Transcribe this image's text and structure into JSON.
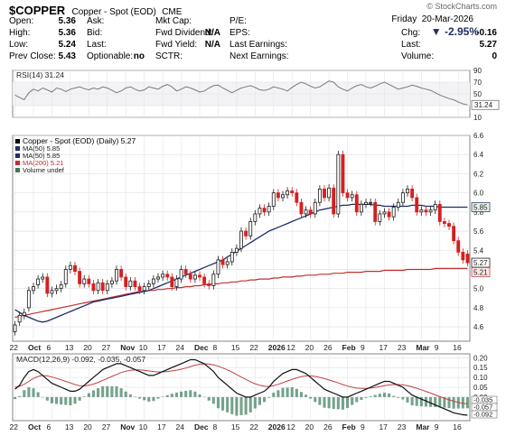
{
  "header": {
    "symbol": "$COPPER",
    "name": "Copper - Spot (EOD)",
    "exchange": "CME",
    "watermark": "© StockCharts.com",
    "date": "Friday  20-Mar-2026",
    "change_pct": "▼ -2.95%",
    "rows": [
      [
        {
          "label": "Open:",
          "value": "5.36"
        },
        {
          "label": "Ask:",
          "value": ""
        },
        {
          "label": "Mkt Cap:",
          "value": ""
        },
        {
          "label": "P/E:",
          "value": ""
        },
        {
          "label": "",
          "value": ""
        }
      ],
      [
        {
          "label": "High:",
          "value": "5.36"
        },
        {
          "label": "Bid:",
          "value": ""
        },
        {
          "label": "Fwd Dividend:",
          "value": "N/A"
        },
        {
          "label": "EPS:",
          "value": ""
        },
        {
          "label": "Chg:",
          "value": "-0.16"
        }
      ],
      [
        {
          "label": "Low:",
          "value": "5.24"
        },
        {
          "label": "Last:",
          "value": ""
        },
        {
          "label": "Fwd Yield:",
          "value": "N/A"
        },
        {
          "label": "Last Earnings:",
          "value": ""
        },
        {
          "label": "Last:",
          "value": "5.27"
        }
      ],
      [
        {
          "label": "Prev Close:",
          "value": "5.43"
        },
        {
          "label": "Optionable:",
          "value": "no"
        },
        {
          "label": "SCTR:",
          "value": ""
        },
        {
          "label": "Next Earnings:",
          "value": ""
        },
        {
          "label": "Volume:",
          "value": "0"
        }
      ]
    ]
  },
  "colors": {
    "price_up": "#1a1a1a",
    "price_down": "#d42020",
    "ma50": "#1f2f66",
    "ma200": "#c03030",
    "rsi": "#7a7a7a",
    "macd": "#111111",
    "signal": "#c04040",
    "hist": "#3b7a5a",
    "band": "#f3f3f6"
  },
  "chart_data": [
    {
      "type": "line",
      "title": "RSI(14) 31.24",
      "ylim": [
        10,
        90
      ],
      "yticks": [
        10,
        30,
        50,
        70,
        90
      ],
      "last_label": "31.24",
      "series": [
        {
          "name": "RSI(14)",
          "values": [
            48,
            44,
            40,
            52,
            58,
            55,
            60,
            57,
            53,
            60,
            58,
            54,
            58,
            60,
            62,
            59,
            57,
            60,
            58,
            62,
            60,
            56,
            52,
            55,
            60,
            62,
            58,
            55,
            57,
            62,
            60,
            58,
            63,
            66,
            62,
            55,
            58,
            62,
            60,
            57,
            53,
            55,
            60,
            64,
            65,
            60,
            56,
            52,
            56,
            60,
            62,
            64,
            61,
            57,
            56,
            58,
            62,
            60,
            58,
            55,
            61,
            66,
            70,
            67,
            63,
            60,
            62,
            67,
            72,
            70,
            62,
            58,
            55,
            60,
            64,
            66,
            62,
            60,
            63,
            67,
            70,
            66,
            62,
            58,
            60,
            62,
            65,
            63,
            60,
            58,
            56,
            52,
            48,
            45,
            42,
            40,
            36,
            33,
            31.24
          ]
        }
      ]
    },
    {
      "type": "candlestick",
      "title": "Copper - Spot (EOD) (Daily) 5.27",
      "ylim": [
        4.45,
        6.6
      ],
      "yticks": [
        4.6,
        4.8,
        5.0,
        5.2,
        5.4,
        5.6,
        5.8,
        6.0,
        6.2,
        6.4,
        6.6
      ],
      "x_labels": [
        "22",
        "Oct",
        "6",
        "13",
        "20",
        "27",
        "Nov",
        "10",
        "17",
        "24",
        "Dec",
        "8",
        "15",
        "22",
        "2026",
        "12",
        "20",
        "26",
        "Feb",
        "9",
        "17",
        "23",
        "Mar",
        "9",
        "16"
      ],
      "legend": [
        "Copper - Spot (EOD) (Daily) 5.27",
        "MA(50) 5.85",
        "MA(50) 5.85",
        "MA(200) 5.21",
        "Volume undef"
      ],
      "price_tags": {
        "ma50": "5.85",
        "last": "5.27",
        "ma200": "5.21"
      },
      "close": [
        4.62,
        4.72,
        4.75,
        4.98,
        5.02,
        5.1,
        5.12,
        4.95,
        4.98,
        5.0,
        5.04,
        5.2,
        5.24,
        5.18,
        5.05,
        5.1,
        5.05,
        4.98,
        5.06,
        4.98,
        5.05,
        5.08,
        5.2,
        5.12,
        5.02,
        5.08,
        5.02,
        4.98,
        5.02,
        5.05,
        5.1,
        5.12,
        5.15,
        5.12,
        5.02,
        5.1,
        5.2,
        5.15,
        5.1,
        5.14,
        5.12,
        5.05,
        5.03,
        5.15,
        5.3,
        5.25,
        5.28,
        5.38,
        5.42,
        5.6,
        5.55,
        5.7,
        5.78,
        5.84,
        5.8,
        5.86,
        6.0,
        5.95,
        5.98,
        6.02,
        6.0,
        5.9,
        5.78,
        5.82,
        5.78,
        5.9,
        6.04,
        5.95,
        6.05,
        5.78,
        6.4,
        6.0,
        5.95,
        5.98,
        5.8,
        5.88,
        5.9,
        5.9,
        5.7,
        5.78,
        5.8,
        5.75,
        5.85,
        5.9,
        6.0,
        6.04,
        5.95,
        5.8,
        5.82,
        5.8,
        5.82,
        5.88,
        5.7,
        5.68,
        5.65,
        5.5,
        5.38,
        5.3,
        5.27
      ],
      "open": [
        4.55,
        4.65,
        4.72,
        4.8,
        4.98,
        5.04,
        5.1,
        5.12,
        4.95,
        4.98,
        5.0,
        5.05,
        5.2,
        5.24,
        5.18,
        5.05,
        5.1,
        5.05,
        4.98,
        5.06,
        4.98,
        5.05,
        5.08,
        5.2,
        5.12,
        5.02,
        5.08,
        5.02,
        4.98,
        5.02,
        5.05,
        5.1,
        5.12,
        5.15,
        5.12,
        5.02,
        5.1,
        5.2,
        5.15,
        5.1,
        5.14,
        5.12,
        5.05,
        5.03,
        5.15,
        5.3,
        5.25,
        5.28,
        5.38,
        5.42,
        5.6,
        5.55,
        5.7,
        5.78,
        5.84,
        5.8,
        5.86,
        6.0,
        5.95,
        5.98,
        6.02,
        6.0,
        5.9,
        5.78,
        5.82,
        5.78,
        5.9,
        6.04,
        5.95,
        6.05,
        5.78,
        6.4,
        6.0,
        5.95,
        5.98,
        5.8,
        5.88,
        5.9,
        5.9,
        5.7,
        5.78,
        5.8,
        5.75,
        5.85,
        5.9,
        6.0,
        6.04,
        5.95,
        5.8,
        5.82,
        5.8,
        5.82,
        5.88,
        5.7,
        5.68,
        5.65,
        5.5,
        5.38,
        5.36
      ],
      "ma50": [
        4.78,
        4.75,
        4.72,
        4.7,
        4.68,
        4.66,
        4.65,
        4.66,
        4.68,
        4.7,
        4.72,
        4.74,
        4.76,
        4.78,
        4.8,
        4.82,
        4.84,
        4.86,
        4.87,
        4.88,
        4.89,
        4.9,
        4.91,
        4.92,
        4.93,
        4.94,
        4.95,
        4.96,
        4.97,
        4.98,
        5.0,
        5.02,
        5.04,
        5.06,
        5.08,
        5.1,
        5.12,
        5.14,
        5.16,
        5.18,
        5.2,
        5.22,
        5.24,
        5.26,
        5.28,
        5.3,
        5.33,
        5.36,
        5.39,
        5.42,
        5.45,
        5.48,
        5.51,
        5.54,
        5.57,
        5.6,
        5.62,
        5.64,
        5.66,
        5.68,
        5.7,
        5.72,
        5.74,
        5.76,
        5.78,
        5.8,
        5.82,
        5.83,
        5.84,
        5.85,
        5.86,
        5.87,
        5.87,
        5.88,
        5.88,
        5.88,
        5.88,
        5.88,
        5.87,
        5.87,
        5.86,
        5.86,
        5.86,
        5.86,
        5.86,
        5.86,
        5.87,
        5.87,
        5.87,
        5.86,
        5.86,
        5.86,
        5.85,
        5.85,
        5.85,
        5.85,
        5.85,
        5.85,
        5.85
      ],
      "ma200": [
        4.7,
        4.71,
        4.72,
        4.73,
        4.74,
        4.75,
        4.76,
        4.77,
        4.78,
        4.79,
        4.8,
        4.81,
        4.82,
        4.83,
        4.84,
        4.85,
        4.86,
        4.87,
        4.88,
        4.89,
        4.9,
        4.91,
        4.92,
        4.93,
        4.94,
        4.95,
        4.96,
        4.97,
        4.97,
        4.98,
        4.98,
        4.99,
        4.99,
        5.0,
        5.0,
        5.01,
        5.01,
        5.02,
        5.02,
        5.03,
        5.03,
        5.04,
        5.04,
        5.05,
        5.05,
        5.06,
        5.06,
        5.07,
        5.07,
        5.08,
        5.08,
        5.09,
        5.09,
        5.1,
        5.1,
        5.1,
        5.11,
        5.11,
        5.12,
        5.12,
        5.12,
        5.13,
        5.13,
        5.14,
        5.14,
        5.14,
        5.15,
        5.15,
        5.15,
        5.16,
        5.16,
        5.16,
        5.17,
        5.17,
        5.17,
        5.17,
        5.18,
        5.18,
        5.18,
        5.18,
        5.19,
        5.19,
        5.19,
        5.19,
        5.19,
        5.2,
        5.2,
        5.2,
        5.2,
        5.2,
        5.2,
        5.21,
        5.21,
        5.21,
        5.21,
        5.21,
        5.21,
        5.21,
        5.21
      ]
    },
    {
      "type": "line",
      "title": "MACD(12,26,9) -0.092, -0.035, -0.057",
      "ylim": [
        -0.12,
        0.22
      ],
      "yticks": [
        0.2,
        0.15,
        0.1,
        0.05,
        0.0
      ],
      "x_labels": [
        "22",
        "Oct",
        "6",
        "13",
        "20",
        "27",
        "Nov",
        "10",
        "17",
        "24",
        "Dec",
        "8",
        "15",
        "22",
        "2026",
        "12",
        "20",
        "26",
        "Feb",
        "9",
        "17",
        "23",
        "Mar",
        "9",
        "16"
      ],
      "price_tags": [
        "-0.035",
        "-0.057",
        "-0.092"
      ],
      "series": [
        {
          "name": "MACD(12,26,9)",
          "values": [
            0.04,
            0.06,
            0.1,
            0.13,
            0.14,
            0.13,
            0.11,
            0.09,
            0.07,
            0.06,
            0.05,
            0.04,
            0.03,
            0.03,
            0.04,
            0.06,
            0.08,
            0.1,
            0.12,
            0.14,
            0.15,
            0.16,
            0.17,
            0.17,
            0.16,
            0.15,
            0.14,
            0.13,
            0.12,
            0.11,
            0.11,
            0.12,
            0.13,
            0.14,
            0.15,
            0.16,
            0.17,
            0.18,
            0.19,
            0.19,
            0.18,
            0.17,
            0.15,
            0.13,
            0.1,
            0.08,
            0.06,
            0.04,
            0.02,
            0.01,
            0.0,
            0.0,
            0.01,
            0.02,
            0.03,
            0.05,
            0.08,
            0.1,
            0.12,
            0.13,
            0.14,
            0.14,
            0.13,
            0.12,
            0.1,
            0.08,
            0.06,
            0.04,
            0.03,
            0.02,
            0.01,
            0.0,
            0.0,
            0.01,
            0.02,
            0.03,
            0.04,
            0.05,
            0.06,
            0.07,
            0.08,
            0.08,
            0.07,
            0.06,
            0.05,
            0.03,
            0.01,
            0.0,
            -0.01,
            -0.02,
            -0.03,
            -0.04,
            -0.05,
            -0.06,
            -0.07,
            -0.08,
            -0.085,
            -0.09,
            -0.092
          ]
        },
        {
          "name": "Signal",
          "values": [
            0.05,
            0.055,
            0.065,
            0.08,
            0.095,
            0.105,
            0.11,
            0.108,
            0.102,
            0.095,
            0.088,
            0.08,
            0.072,
            0.064,
            0.058,
            0.057,
            0.06,
            0.066,
            0.075,
            0.085,
            0.095,
            0.105,
            0.115,
            0.125,
            0.132,
            0.136,
            0.138,
            0.138,
            0.136,
            0.133,
            0.13,
            0.128,
            0.128,
            0.13,
            0.133,
            0.137,
            0.142,
            0.148,
            0.155,
            0.162,
            0.167,
            0.169,
            0.168,
            0.164,
            0.157,
            0.148,
            0.138,
            0.127,
            0.115,
            0.102,
            0.09,
            0.078,
            0.068,
            0.06,
            0.055,
            0.054,
            0.058,
            0.065,
            0.073,
            0.082,
            0.09,
            0.098,
            0.104,
            0.108,
            0.108,
            0.105,
            0.1,
            0.094,
            0.087,
            0.08,
            0.072,
            0.064,
            0.056,
            0.05,
            0.046,
            0.044,
            0.044,
            0.046,
            0.049,
            0.053,
            0.058,
            0.062,
            0.064,
            0.064,
            0.062,
            0.058,
            0.052,
            0.045,
            0.037,
            0.029,
            0.02,
            0.011,
            0.002,
            -0.006,
            -0.014,
            -0.021,
            -0.027,
            -0.032,
            -0.035
          ]
        }
      ]
    }
  ]
}
